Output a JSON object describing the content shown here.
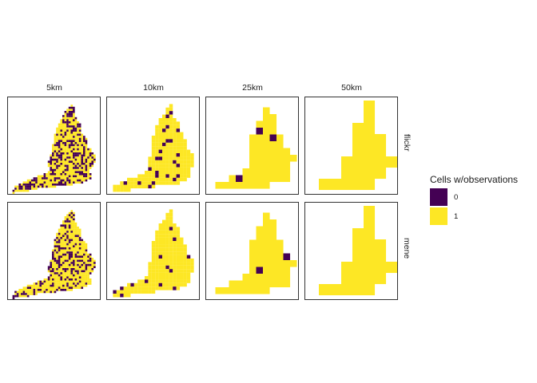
{
  "chart_data": {
    "type": "heatmap",
    "title": "",
    "column_labels": [
      "5km",
      "10km",
      "25km",
      "50km"
    ],
    "row_labels": [
      "flickr",
      "mene"
    ],
    "legend": {
      "title": "Cells w/observations",
      "placement": "right",
      "entries": [
        {
          "value": 0,
          "label": "0",
          "color": "#440154"
        },
        {
          "value": 1,
          "label": "1",
          "color": "#FDE725"
        }
      ]
    },
    "grid": false
  }
}
